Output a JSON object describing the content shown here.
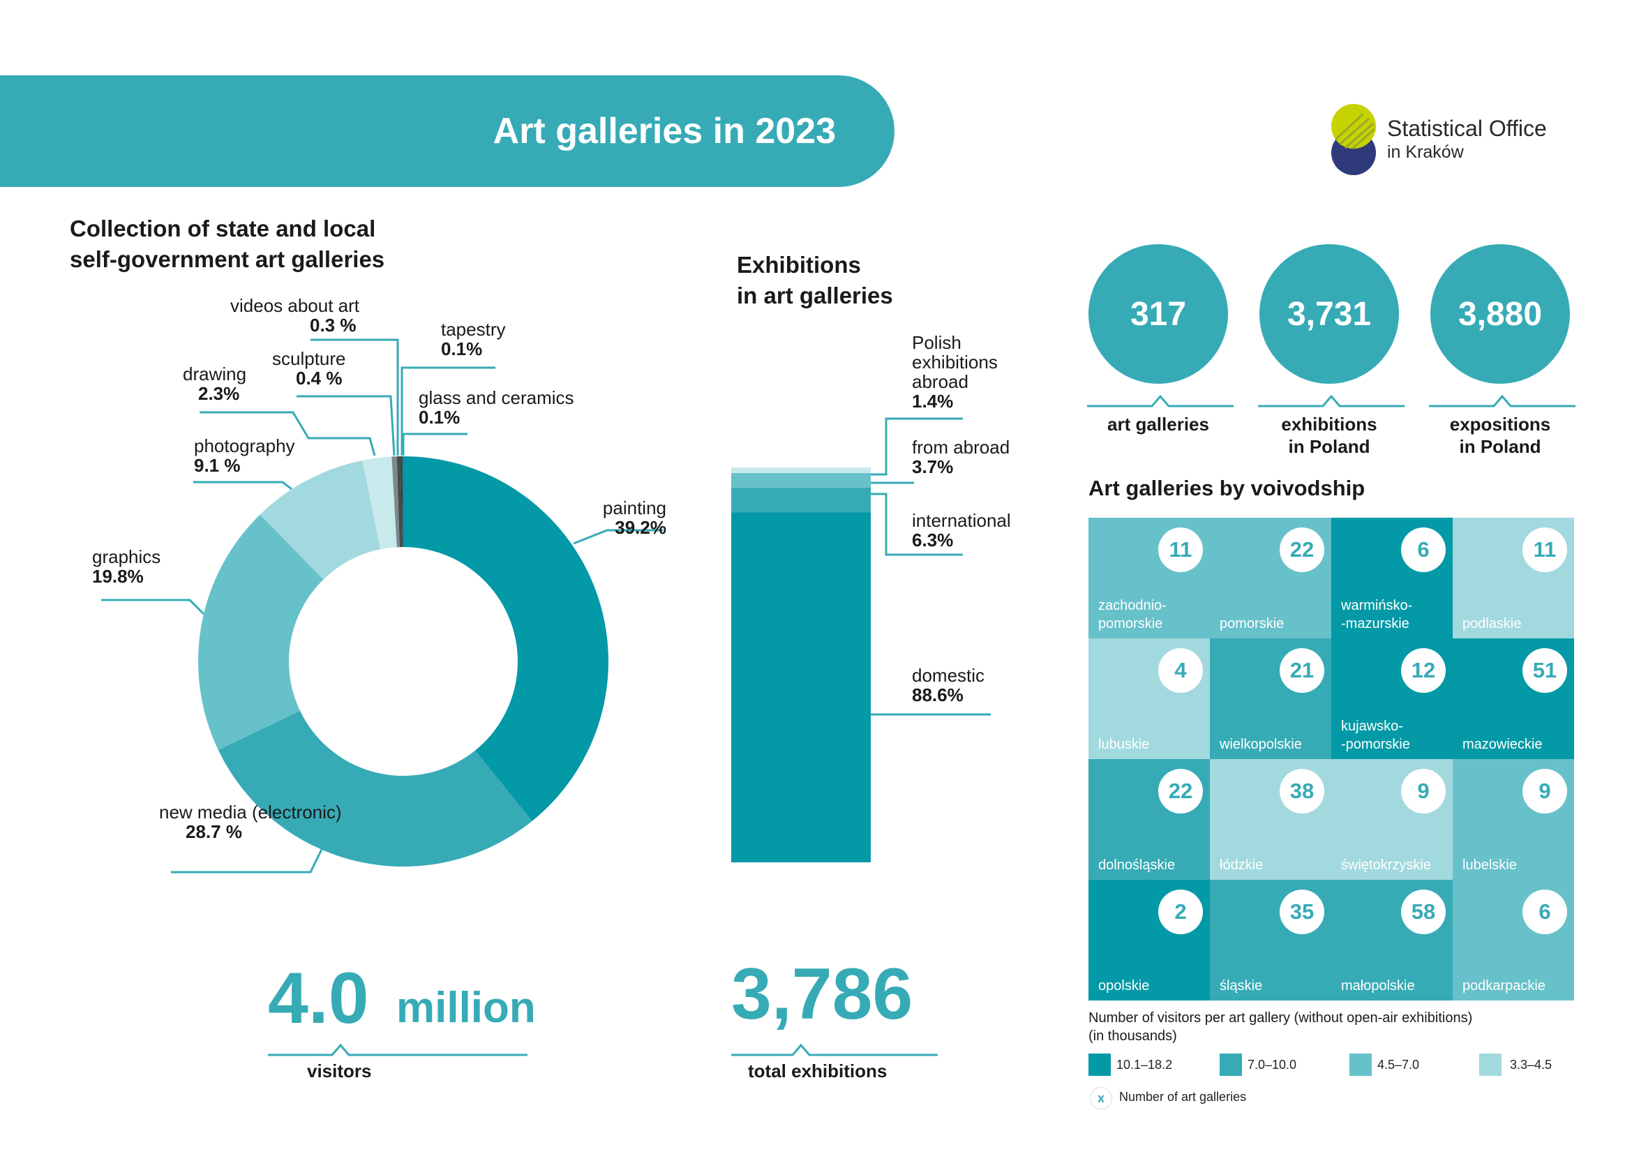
{
  "banner": {
    "title": "Art galleries in 2023"
  },
  "logo": {
    "line1": "Statistical Office",
    "line2": "in Kraków"
  },
  "collection": {
    "title_line1": "Collection of state and local",
    "title_line2": "self-government art galleries",
    "visitors_number": "4.0",
    "visitors_unit": "million",
    "visitors_caption": "visitors"
  },
  "exhibitions": {
    "title_line1": "Exhibitions",
    "title_line2": "in art galleries",
    "total_number": "3,786",
    "total_caption": "total exhibitions"
  },
  "stats": [
    {
      "value": "317",
      "caption1": "art galleries",
      "caption2": ""
    },
    {
      "value": "3,731",
      "caption1": "exhibitions",
      "caption2": "in Poland"
    },
    {
      "value": "3,880",
      "caption1": "expositions",
      "caption2": "in Poland"
    }
  ],
  "voivodship": {
    "title": "Art galleries by voivodship",
    "legend_title_line1": "Number of visitors per art gallery (without open-air exhibitions)",
    "legend_title_line2": "(in thousands)",
    "legend": [
      {
        "label": "10.1–18.2",
        "color": "#0399a6"
      },
      {
        "label": "7.0–10.0",
        "color": "#36abb6"
      },
      {
        "label": "4.5–7.0",
        "color": "#67c1ca"
      },
      {
        "label": "3.3–4.5",
        "color": "#a2d9de"
      }
    ],
    "legend_marker": "x",
    "legend_marker_label": "Number of art galleries"
  },
  "chart_data": [
    {
      "type": "pie",
      "title": "Collection of state and local self-government art galleries",
      "categories": [
        "painting",
        "new media (electronic)",
        "graphics",
        "photography",
        "drawing",
        "sculpture",
        "videos about art",
        "tapestry",
        "glass and ceramics"
      ],
      "values": [
        39.2,
        28.7,
        19.8,
        9.1,
        2.3,
        0.4,
        0.3,
        0.1,
        0.1
      ],
      "labels": [
        "39.2%",
        "28.7 %",
        "19.8%",
        "9.1 %",
        "2.3%",
        "0.4 %",
        "0.3 %",
        "0.1%",
        "0.1%"
      ],
      "colors": [
        "#0399a6",
        "#36abb6",
        "#67c1ca",
        "#a2d9de",
        "#c9eaed",
        "#7a8a8c",
        "#4a4a4a",
        "#333333",
        "#1e6f76"
      ]
    },
    {
      "type": "bar",
      "title": "Exhibitions in art galleries",
      "stacked": true,
      "categories": [
        "domestic",
        "international",
        "from abroad",
        "Polish exhibitions abroad"
      ],
      "values": [
        88.6,
        6.3,
        3.7,
        1.4
      ],
      "labels": [
        "88.6%",
        "6.3%",
        "3.7%",
        "1.4%"
      ],
      "colors": [
        "#0399a6",
        "#36abb6",
        "#67c1ca",
        "#c9eaed"
      ]
    },
    {
      "type": "heatmap",
      "title": "Art galleries by voivodship",
      "rows": [
        [
          {
            "name": "zachodnio-\npomorskie",
            "galleries": 11,
            "class": 3
          },
          {
            "name": "pomorskie",
            "galleries": 22,
            "class": 3
          },
          {
            "name": "warmińsko-\n-mazurskie",
            "galleries": 6,
            "class": 1
          },
          {
            "name": "podlaskie",
            "galleries": 11,
            "class": 4
          }
        ],
        [
          {
            "name": "lubuskie",
            "galleries": 4,
            "class": 4
          },
          {
            "name": "wielkopolskie",
            "galleries": 21,
            "class": 2
          },
          {
            "name": "kujawsko-\n-pomorskie",
            "galleries": 12,
            "class": 1
          },
          {
            "name": "mazowieckie",
            "galleries": 51,
            "class": 1
          }
        ],
        [
          {
            "name": "dolnośląskie",
            "galleries": 22,
            "class": 2
          },
          {
            "name": "łódzkie",
            "galleries": 38,
            "class": 4
          },
          {
            "name": "świętokrzyskie",
            "galleries": 9,
            "class": 4
          },
          {
            "name": "lubelskie",
            "galleries": 9,
            "class": 3
          }
        ],
        [
          {
            "name": "opolskie",
            "galleries": 2,
            "class": 1
          },
          {
            "name": "śląskie",
            "galleries": 35,
            "class": 2
          },
          {
            "name": "małopolskie",
            "galleries": 58,
            "class": 2
          },
          {
            "name": "podkarpackie",
            "galleries": 6,
            "class": 3
          }
        ]
      ]
    }
  ]
}
